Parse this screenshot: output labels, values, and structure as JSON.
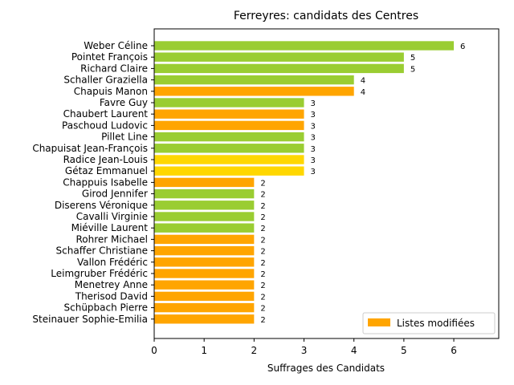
{
  "chart_data": {
    "type": "bar",
    "orientation": "horizontal",
    "title": "Ferreyres: candidats des Centres",
    "xlabel": "Suffrages des Candidats",
    "ylabel": "",
    "xlim": [
      0,
      6.9
    ],
    "x_ticks": [
      "0",
      "1",
      "2",
      "3",
      "4",
      "5",
      "6"
    ],
    "grid": false,
    "legend": {
      "placement": "lower-right",
      "entries": [
        {
          "label": "Listes modifiées",
          "color": "#FFA500"
        }
      ]
    },
    "colors": {
      "green": "#9ACD32",
      "orange": "#FFA500",
      "yellow": "#FFD700"
    },
    "bars": [
      {
        "name": "Weber Céline",
        "value": 6,
        "color": "green"
      },
      {
        "name": "Pointet François",
        "value": 5,
        "color": "green"
      },
      {
        "name": "Richard Claire",
        "value": 5,
        "color": "green"
      },
      {
        "name": "Schaller Graziella",
        "value": 4,
        "color": "green"
      },
      {
        "name": "Chapuis Manon",
        "value": 4,
        "color": "orange"
      },
      {
        "name": "Favre Guy",
        "value": 3,
        "color": "green"
      },
      {
        "name": "Chaubert Laurent",
        "value": 3,
        "color": "orange"
      },
      {
        "name": "Paschoud Ludovic",
        "value": 3,
        "color": "orange"
      },
      {
        "name": "Pillet Line",
        "value": 3,
        "color": "green"
      },
      {
        "name": "Chapuisat Jean-François",
        "value": 3,
        "color": "green"
      },
      {
        "name": "Radice Jean-Louis",
        "value": 3,
        "color": "yellow"
      },
      {
        "name": "Gétaz Emmanuel",
        "value": 3,
        "color": "yellow"
      },
      {
        "name": "Chappuis Isabelle",
        "value": 2,
        "color": "orange"
      },
      {
        "name": "Girod Jennifer",
        "value": 2,
        "color": "green"
      },
      {
        "name": "Diserens Véronique",
        "value": 2,
        "color": "green"
      },
      {
        "name": "Cavalli Virginie",
        "value": 2,
        "color": "green"
      },
      {
        "name": "Miéville Laurent",
        "value": 2,
        "color": "green"
      },
      {
        "name": "Rohrer Michael",
        "value": 2,
        "color": "orange"
      },
      {
        "name": "Schaffer Christiane",
        "value": 2,
        "color": "orange"
      },
      {
        "name": "Vallon Frédéric",
        "value": 2,
        "color": "orange"
      },
      {
        "name": "Leimgruber Frédéric",
        "value": 2,
        "color": "orange"
      },
      {
        "name": "Menetrey Anne",
        "value": 2,
        "color": "orange"
      },
      {
        "name": "Therisod David",
        "value": 2,
        "color": "orange"
      },
      {
        "name": "Schüpbach Pierre",
        "value": 2,
        "color": "orange"
      },
      {
        "name": "Steinauer Sophie-Emilia",
        "value": 2,
        "color": "orange"
      }
    ]
  }
}
